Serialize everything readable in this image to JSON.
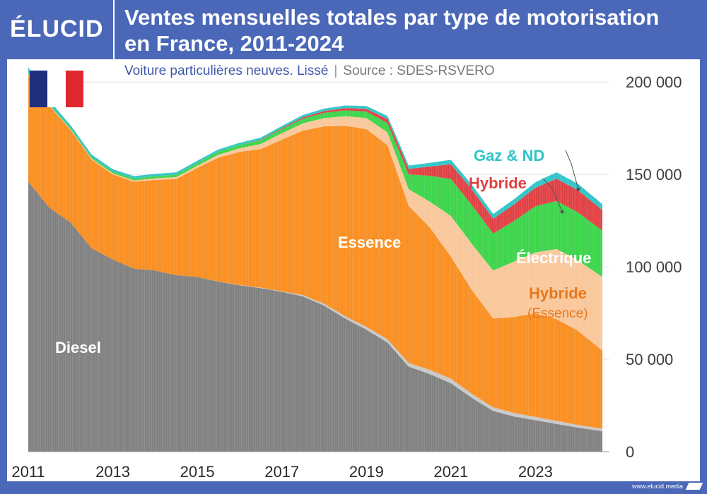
{
  "header": {
    "logo": "ÉLUCID",
    "title_line1": "Ventes mensuelles totales par type de motorisation",
    "title_line2": "en France, 2011-2024"
  },
  "subtitle": {
    "description": "Voiture particulières neuves. Lissé",
    "separator": "|",
    "source": "Source : SDES-RSVERO"
  },
  "footer": {
    "credit": "www.elucid.media"
  },
  "flag": {
    "colors": [
      "#1f2f7d",
      "#ffffff",
      "#e0292e"
    ],
    "icon": "france-flag-icon"
  },
  "colors": {
    "diesel": "#808080",
    "diesel_light": "#c8c8c8",
    "essence": "#f98e20",
    "hybride_essence": "#f9c79a",
    "electrique": "#3bd44a",
    "hybride": "#e04043",
    "gaz_nd": "#2fc4c7",
    "accent": "#4a67b8"
  },
  "chart_data": {
    "type": "area",
    "stacked": true,
    "title": "Ventes mensuelles totales par type de motorisation en France, 2011-2024",
    "subtitle": "Voiture particulières neuves. Lissé",
    "xlim": [
      2011,
      2024.75
    ],
    "ylim": [
      0,
      210000
    ],
    "yticks": [
      0,
      50000,
      100000,
      150000,
      200000
    ],
    "ytick_labels": [
      "0",
      "50 000",
      "100 000",
      "150 000",
      "200 000"
    ],
    "xticks": [
      2011,
      2013,
      2015,
      2017,
      2019,
      2021,
      2023
    ],
    "xtick_labels": [
      "2011",
      "2013",
      "2015",
      "2017",
      "2019",
      "2021",
      "2023"
    ],
    "y_axis_position": "right",
    "grid": true,
    "series": [
      {
        "name": "Diesel",
        "label": "Diesel",
        "color": "#808080",
        "points": [
          [
            2011,
            146000
          ],
          [
            2011.5,
            132000
          ],
          [
            2012,
            124000
          ],
          [
            2012.5,
            110000
          ],
          [
            2013,
            104000
          ],
          [
            2013.5,
            99000
          ],
          [
            2014,
            98000
          ],
          [
            2014.5,
            95500
          ],
          [
            2015,
            94500
          ],
          [
            2015.5,
            92000
          ],
          [
            2016,
            90000
          ],
          [
            2016.5,
            88500
          ],
          [
            2017,
            86500
          ],
          [
            2017.5,
            84000
          ],
          [
            2018,
            79000
          ],
          [
            2018.5,
            72000
          ],
          [
            2019,
            66000
          ],
          [
            2019.5,
            59000
          ],
          [
            2020,
            46000
          ],
          [
            2020.5,
            42000
          ],
          [
            2021,
            37000
          ],
          [
            2021.5,
            29000
          ],
          [
            2022,
            22000
          ],
          [
            2022.5,
            19000
          ],
          [
            2023,
            17000
          ],
          [
            2023.5,
            15000
          ],
          [
            2024,
            13000
          ],
          [
            2024.6,
            11000
          ]
        ]
      },
      {
        "name": "Diesel (hybride)",
        "label": "",
        "color": "#c8c8c8",
        "points": [
          [
            2011,
            0
          ],
          [
            2013,
            0
          ],
          [
            2015,
            0
          ],
          [
            2017,
            300
          ],
          [
            2018,
            1000
          ],
          [
            2019,
            1500
          ],
          [
            2020,
            2000
          ],
          [
            2021,
            2500
          ],
          [
            2022,
            2000
          ],
          [
            2023,
            1800
          ],
          [
            2024,
            1500
          ],
          [
            2024.6,
            1300
          ]
        ]
      },
      {
        "name": "Essence",
        "label": "Essence",
        "color": "#f98e20",
        "points": [
          [
            2011,
            58000
          ],
          [
            2011.5,
            55000
          ],
          [
            2012,
            50000
          ],
          [
            2012.5,
            48000
          ],
          [
            2013,
            46000
          ],
          [
            2013.5,
            47000
          ],
          [
            2014,
            49000
          ],
          [
            2014.5,
            52000
          ],
          [
            2015,
            59000
          ],
          [
            2015.5,
            67000
          ],
          [
            2016,
            72000
          ],
          [
            2016.5,
            75000
          ],
          [
            2017,
            82000
          ],
          [
            2017.5,
            89000
          ],
          [
            2018,
            96000
          ],
          [
            2018.5,
            103000
          ],
          [
            2019,
            107000
          ],
          [
            2019.5,
            105000
          ],
          [
            2020,
            85000
          ],
          [
            2020.5,
            77000
          ],
          [
            2021,
            66000
          ],
          [
            2021.5,
            56000
          ],
          [
            2022,
            48000
          ],
          [
            2022.5,
            52000
          ],
          [
            2023,
            56000
          ],
          [
            2023.5,
            55000
          ],
          [
            2024,
            51000
          ],
          [
            2024.6,
            42000
          ]
        ]
      },
      {
        "name": "Hybride (Essence)",
        "label": "Hybride",
        "label2": "(Essence)",
        "color": "#f9c79a",
        "points": [
          [
            2011,
            300
          ],
          [
            2013,
            600
          ],
          [
            2015,
            1200
          ],
          [
            2016,
            2000
          ],
          [
            2017,
            3500
          ],
          [
            2018,
            4500
          ],
          [
            2019,
            6000
          ],
          [
            2019.5,
            7000
          ],
          [
            2020,
            9000
          ],
          [
            2020.5,
            14000
          ],
          [
            2021,
            22000
          ],
          [
            2021.5,
            25000
          ],
          [
            2022,
            26000
          ],
          [
            2022.5,
            30000
          ],
          [
            2023,
            33000
          ],
          [
            2023.5,
            38000
          ],
          [
            2024,
            38000
          ],
          [
            2024.6,
            40000
          ]
        ]
      },
      {
        "name": "Électrique",
        "label": "Électrique",
        "color": "#3bd44a",
        "points": [
          [
            2011,
            200
          ],
          [
            2013,
            900
          ],
          [
            2015,
            1500
          ],
          [
            2017,
            2200
          ],
          [
            2018,
            2800
          ],
          [
            2019,
            3500
          ],
          [
            2019.5,
            5000
          ],
          [
            2020,
            8000
          ],
          [
            2020.5,
            14000
          ],
          [
            2021,
            20000
          ],
          [
            2021.5,
            21000
          ],
          [
            2022,
            20000
          ],
          [
            2022.5,
            22000
          ],
          [
            2023,
            25000
          ],
          [
            2023.5,
            26000
          ],
          [
            2024,
            26000
          ],
          [
            2024.6,
            25000
          ]
        ]
      },
      {
        "name": "Hybride",
        "label": "Hybride",
        "color": "#e04043",
        "points": [
          [
            2011,
            0
          ],
          [
            2016,
            0
          ],
          [
            2017,
            500
          ],
          [
            2018,
            1000
          ],
          [
            2019,
            1500
          ],
          [
            2019.5,
            2200
          ],
          [
            2020,
            3000
          ],
          [
            2020.5,
            5000
          ],
          [
            2021,
            8000
          ],
          [
            2021.5,
            8500
          ],
          [
            2022,
            8000
          ],
          [
            2022.5,
            9000
          ],
          [
            2023,
            10000
          ],
          [
            2023.5,
            12000
          ],
          [
            2024,
            12000
          ],
          [
            2024.6,
            11000
          ]
        ]
      },
      {
        "name": "Gaz & ND",
        "label": "Gaz & ND",
        "color": "#2fc4c7",
        "points": [
          [
            2011,
            3500
          ],
          [
            2011.5,
            2200
          ],
          [
            2012,
            1600
          ],
          [
            2013,
            1300
          ],
          [
            2014,
            1200
          ],
          [
            2015,
            1200
          ],
          [
            2016,
            1100
          ],
          [
            2017,
            1200
          ],
          [
            2018,
            1300
          ],
          [
            2019,
            1500
          ],
          [
            2020,
            1800
          ],
          [
            2020.5,
            2000
          ],
          [
            2021,
            2400
          ],
          [
            2022,
            2600
          ],
          [
            2023,
            3000
          ],
          [
            2023.5,
            3500
          ],
          [
            2024,
            3500
          ],
          [
            2024.6,
            3300
          ]
        ]
      }
    ],
    "annotations": [
      "Diesel",
      "Essence",
      "Électrique",
      "Hybride",
      "(Essence)",
      "Gaz & ND"
    ]
  }
}
